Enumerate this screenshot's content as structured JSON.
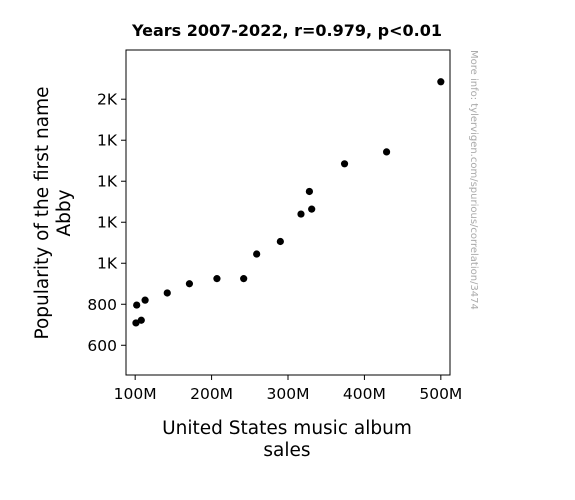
{
  "chart_data": {
    "type": "scatter",
    "title": "Years 2007-2022, r=0.979, p<0.01",
    "xlabel_lines": [
      "United States music album",
      "sales"
    ],
    "ylabel_lines": [
      "Popularity of the first name",
      "Abby"
    ],
    "xlim": [
      88,
      512
    ],
    "ylim": [
      455,
      2040
    ],
    "x_ticks": [
      {
        "value": 100,
        "label": "100M"
      },
      {
        "value": 200,
        "label": "200M"
      },
      {
        "value": 300,
        "label": "300M"
      },
      {
        "value": 400,
        "label": "400M"
      },
      {
        "value": 500,
        "label": "500M"
      }
    ],
    "y_ticks": [
      {
        "value": 600,
        "label": "600"
      },
      {
        "value": 800,
        "label": "800"
      },
      {
        "value": 1000,
        "label": "1K"
      },
      {
        "value": 1200,
        "label": "1K"
      },
      {
        "value": 1400,
        "label": "1K"
      },
      {
        "value": 1600,
        "label": "1K"
      },
      {
        "value": 1800,
        "label": "2K"
      }
    ],
    "points": [
      {
        "x": 500,
        "y": 1885
      },
      {
        "x": 429,
        "y": 1543
      },
      {
        "x": 374,
        "y": 1485
      },
      {
        "x": 328,
        "y": 1350
      },
      {
        "x": 331,
        "y": 1264
      },
      {
        "x": 317,
        "y": 1240
      },
      {
        "x": 290,
        "y": 1106
      },
      {
        "x": 259,
        "y": 1045
      },
      {
        "x": 242,
        "y": 925
      },
      {
        "x": 207,
        "y": 925
      },
      {
        "x": 171,
        "y": 900
      },
      {
        "x": 142,
        "y": 855
      },
      {
        "x": 113,
        "y": 820
      },
      {
        "x": 102,
        "y": 796
      },
      {
        "x": 108,
        "y": 722
      },
      {
        "x": 101,
        "y": 709
      }
    ],
    "marker_color": "#000000",
    "grid": false,
    "legend": "none"
  },
  "watermark": "More info: tylervigen.com/spurious/correlation/3474"
}
